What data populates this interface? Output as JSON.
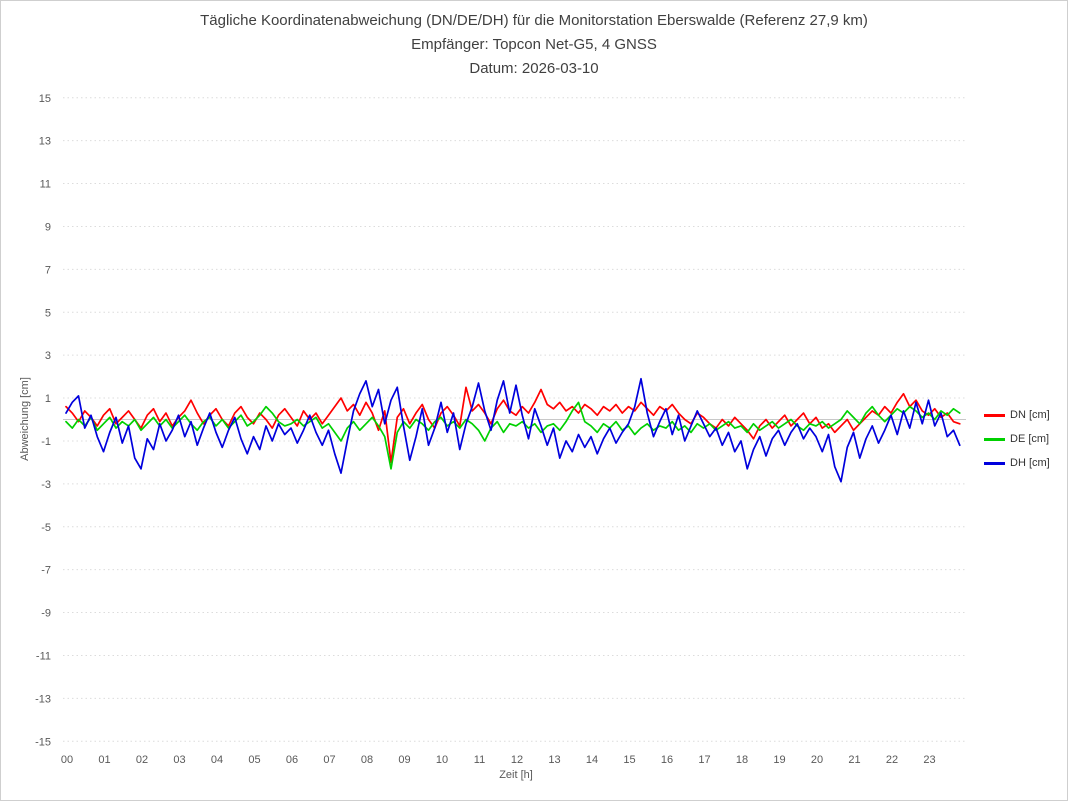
{
  "page": {
    "background": "#ffffff",
    "border_color": "#cfcfcf"
  },
  "header": {
    "title": "Tägliche Koordinatenabweichung (DN/DE/DH) für die Monitorstation Eberswalde (Referenz 27,9 km)",
    "subtitle": "Empfänger: Topcon Net-G5, 4 GNSS",
    "date_line": "Datum: 2026-03-10"
  },
  "chart_data": {
    "type": "line",
    "title": "Tägliche Koordinatenabweichung (DN/DE/DH) für die Monitorstation Eberswalde (Referenz 27,9 km)",
    "subtitle": "Empfänger: Topcon Net-G5, 4 GNSS",
    "date": "2026-03-10",
    "xlabel": "Zeit [h]",
    "ylabel": "Abweichung [cm]",
    "xlim": [
      0,
      24
    ],
    "ylim": [
      -15,
      15
    ],
    "x_tick_labels": [
      "00",
      "01",
      "02",
      "03",
      "04",
      "05",
      "06",
      "07",
      "08",
      "09",
      "10",
      "11",
      "12",
      "13",
      "14",
      "15",
      "16",
      "17",
      "18",
      "19",
      "20",
      "21",
      "22",
      "23"
    ],
    "y_ticks": [
      15,
      13,
      11,
      9,
      7,
      5,
      3,
      1,
      -1,
      -3,
      -5,
      -7,
      -9,
      -11,
      -13,
      -15
    ],
    "grid": "dotted horizontal lines at odd values",
    "zero_line": true,
    "legend_position": "right",
    "legend_entries": [
      "DN [cm]",
      "DE [cm]",
      "DH [cm]"
    ],
    "x_start_hour": 0,
    "x_interval_minutes": 10,
    "grid_color": "#dcdcdc",
    "zero_line_color": "#c8c8c8",
    "tick_color": "#595959",
    "series": [
      {
        "name": "DN [cm]",
        "color": "#ff0000",
        "values": [
          0.6,
          0.3,
          -0.1,
          0.4,
          0.1,
          -0.3,
          0.2,
          0.5,
          -0.2,
          0.1,
          0.4,
          0.0,
          -0.4,
          0.2,
          0.5,
          -0.1,
          0.3,
          -0.3,
          0.1,
          0.4,
          0.9,
          0.3,
          -0.2,
          0.2,
          0.5,
          0.0,
          -0.3,
          0.3,
          0.6,
          0.1,
          -0.2,
          0.3,
          0.0,
          -0.4,
          0.2,
          0.5,
          0.1,
          -0.3,
          0.4,
          0.0,
          0.3,
          -0.2,
          0.2,
          0.6,
          1.0,
          0.4,
          0.7,
          0.2,
          0.8,
          0.3,
          -0.5,
          0.4,
          -2.0,
          0.1,
          0.5,
          -0.2,
          0.3,
          0.7,
          0.0,
          -0.4,
          0.3,
          0.6,
          0.2,
          -0.3,
          1.5,
          0.4,
          0.7,
          0.3,
          -0.2,
          0.5,
          0.9,
          0.4,
          0.2,
          0.6,
          0.3,
          0.8,
          1.4,
          0.7,
          0.5,
          0.8,
          0.4,
          0.6,
          0.3,
          0.7,
          0.5,
          0.2,
          0.6,
          0.4,
          0.7,
          0.3,
          0.6,
          0.4,
          0.8,
          0.5,
          0.2,
          0.6,
          0.4,
          0.7,
          0.3,
          0.0,
          -0.2,
          0.3,
          0.1,
          -0.2,
          -0.4,
          0.0,
          -0.3,
          0.1,
          -0.2,
          -0.5,
          -0.9,
          -0.3,
          0.0,
          -0.4,
          -0.1,
          0.2,
          -0.3,
          0.0,
          0.3,
          -0.2,
          0.1,
          -0.4,
          -0.2,
          -0.6,
          -0.3,
          0.0,
          -0.5,
          -0.2,
          0.1,
          0.4,
          0.2,
          0.6,
          0.3,
          0.8,
          1.2,
          0.6,
          0.9,
          0.4,
          0.2,
          0.5,
          0.1,
          0.3,
          -0.1,
          -0.2
        ]
      },
      {
        "name": "DE [cm]",
        "color": "#00d000",
        "values": [
          -0.1,
          -0.4,
          0.0,
          -0.3,
          0.1,
          -0.5,
          -0.2,
          0.1,
          -0.4,
          -0.1,
          -0.3,
          0.0,
          -0.5,
          -0.2,
          0.1,
          -0.3,
          0.0,
          -0.4,
          -0.1,
          0.2,
          -0.2,
          -0.5,
          -0.1,
          0.1,
          -0.3,
          0.0,
          -0.4,
          -0.1,
          0.2,
          -0.3,
          -0.1,
          0.2,
          0.6,
          0.3,
          -0.1,
          -0.3,
          -0.2,
          0.0,
          -0.3,
          -0.1,
          0.1,
          -0.4,
          -0.2,
          -0.6,
          -1.0,
          -0.4,
          -0.1,
          -0.5,
          -0.2,
          0.1,
          -0.3,
          -0.8,
          -2.3,
          -0.6,
          -0.1,
          -0.4,
          0.0,
          -0.2,
          -0.5,
          -0.1,
          0.1,
          -0.3,
          -0.1,
          -0.4,
          0.0,
          -0.2,
          -0.5,
          -1.0,
          -0.4,
          -0.1,
          -0.6,
          -0.2,
          -0.3,
          -0.1,
          -0.4,
          -0.2,
          -0.6,
          -0.3,
          -0.2,
          -0.5,
          -0.1,
          0.4,
          0.8,
          -0.1,
          -0.3,
          -0.6,
          -0.2,
          -0.4,
          -0.1,
          -0.5,
          -0.3,
          -0.7,
          -0.4,
          -0.2,
          -0.5,
          -0.3,
          -0.4,
          -0.1,
          -0.5,
          -0.3,
          -0.6,
          -0.2,
          -0.4,
          -0.2,
          -0.5,
          -0.3,
          -0.1,
          -0.4,
          -0.3,
          -0.6,
          -0.2,
          -0.5,
          -0.3,
          -0.1,
          -0.4,
          -0.2,
          0.0,
          -0.3,
          -0.5,
          -0.2,
          -0.3,
          -0.1,
          -0.4,
          -0.2,
          0.0,
          0.4,
          0.1,
          -0.2,
          0.3,
          0.6,
          0.2,
          -0.1,
          0.2,
          0.5,
          0.3,
          0.6,
          0.4,
          0.1,
          0.3,
          0.0,
          0.4,
          0.2,
          0.5,
          0.3
        ]
      },
      {
        "name": "DH [cm]",
        "color": "#0000dd",
        "values": [
          0.3,
          0.8,
          1.1,
          -0.4,
          0.2,
          -0.8,
          -1.5,
          -0.6,
          0.1,
          -1.1,
          -0.3,
          -1.8,
          -2.3,
          -0.9,
          -1.4,
          -0.2,
          -1.0,
          -0.5,
          0.2,
          -0.8,
          -0.1,
          -1.2,
          -0.4,
          0.3,
          -0.6,
          -1.3,
          -0.5,
          0.1,
          -0.9,
          -1.6,
          -0.8,
          -1.4,
          -0.3,
          -1.0,
          -0.2,
          -0.7,
          -0.4,
          -1.1,
          -0.5,
          0.2,
          -0.6,
          -1.2,
          -0.5,
          -1.6,
          -2.5,
          -1.0,
          0.4,
          1.2,
          1.8,
          0.6,
          1.4,
          -0.2,
          0.9,
          1.5,
          -0.3,
          -1.9,
          -0.8,
          0.5,
          -1.2,
          -0.4,
          0.8,
          -0.6,
          0.3,
          -1.4,
          -0.2,
          0.6,
          1.7,
          0.4,
          -0.5,
          0.9,
          1.8,
          0.3,
          1.6,
          0.2,
          -0.9,
          0.5,
          -0.3,
          -1.2,
          -0.4,
          -1.8,
          -1.0,
          -1.5,
          -0.7,
          -1.3,
          -0.8,
          -1.6,
          -0.9,
          -0.4,
          -1.1,
          -0.6,
          -0.2,
          0.6,
          1.9,
          0.3,
          -0.8,
          -0.1,
          0.5,
          -0.7,
          0.2,
          -1.0,
          -0.3,
          0.4,
          -0.2,
          -0.8,
          -0.4,
          -1.2,
          -0.6,
          -1.5,
          -1.0,
          -2.3,
          -1.4,
          -0.8,
          -1.7,
          -0.9,
          -0.5,
          -1.2,
          -0.6,
          -0.2,
          -0.9,
          -0.4,
          -0.8,
          -1.5,
          -0.7,
          -2.2,
          -2.9,
          -1.3,
          -0.6,
          -1.8,
          -0.9,
          -0.3,
          -1.1,
          -0.5,
          0.2,
          -0.7,
          0.4,
          -0.4,
          0.8,
          -0.2,
          0.9,
          -0.3,
          0.3,
          -0.8,
          -0.5,
          -1.2
        ]
      }
    ]
  }
}
